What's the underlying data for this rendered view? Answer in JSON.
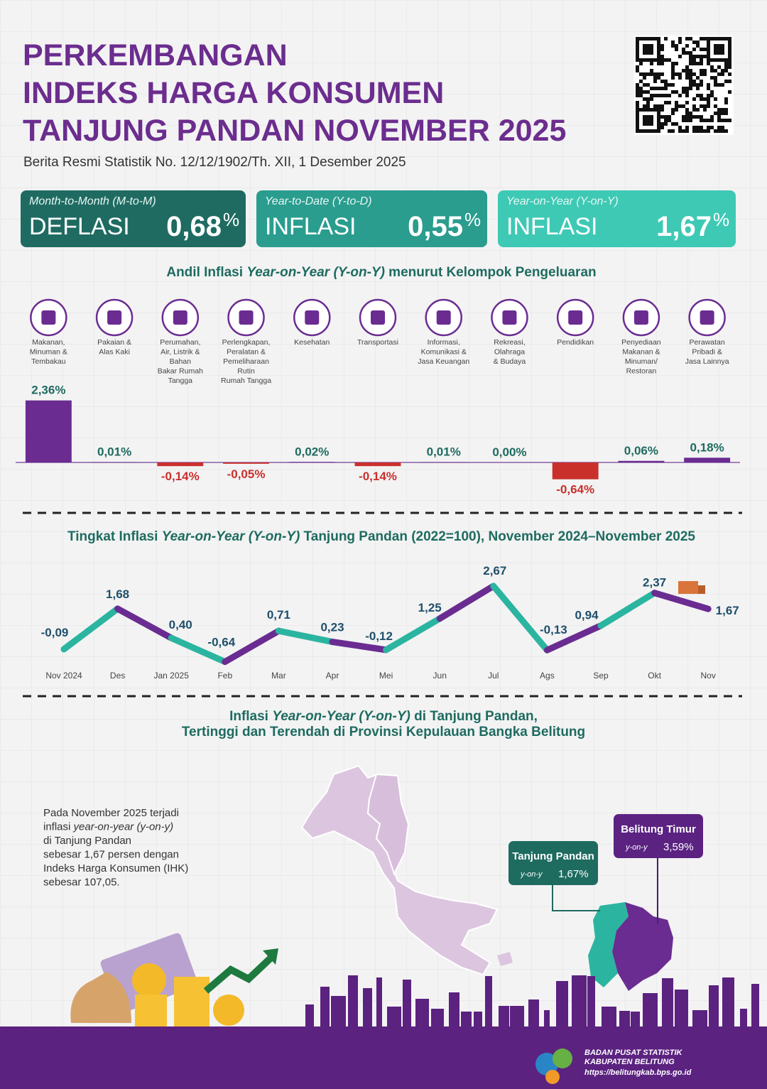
{
  "header": {
    "title": [
      "PERKEMBANGAN",
      "INDEKS HARGA KONSUMEN",
      "TANJUNG PANDAN NOVEMBER 2025"
    ],
    "subtitle": "Berita Resmi Statistik No. 12/12/1902/Th. XII, 1 Desember 2025"
  },
  "summary": [
    {
      "period": "Month-to-Month (M-to-M)",
      "status": "DEFLASI",
      "value": "0,68",
      "unit": "%"
    },
    {
      "period": "Year-to-Date (Y-to-D)",
      "status": "INFLASI",
      "value": "0,55",
      "unit": "%"
    },
    {
      "period": "Year-on-Year (Y-on-Y)",
      "status": "INFLASI",
      "value": "1,67",
      "unit": "%"
    }
  ],
  "chart_data": [
    {
      "type": "bar",
      "title": [
        "Andil Inflasi ",
        "Year-on-Year (Y-on-Y)",
        " menurut Kelompok Pengeluaran"
      ],
      "categories": [
        "Makanan,\nMinuman &\nTembakau",
        "Pakaian &\nAlas Kaki",
        "Perumahan,\nAir, Listrik &\nBahan\nBakar Rumah\nTangga",
        "Perlengkapan,\nPeralatan &\nPemeliharaan\nRutin\nRumah Tangga",
        "Kesehatan",
        "Transportasi",
        "Informasi,\nKomunikasi &\nJasa Keuangan",
        "Rekreasi,\nOlahraga\n& Budaya",
        "Pendidikan",
        "Penyediaan\nMakanan &\nMinuman/\nRestoran",
        "Perawatan\nPribadi &\nJasa Lainnya"
      ],
      "values": [
        2.36,
        0.01,
        -0.14,
        -0.05,
        0.02,
        -0.14,
        0.01,
        0.0,
        -0.64,
        0.06,
        0.18
      ],
      "value_labels": [
        "2,36%",
        "0,01%",
        "-0,14%",
        "-0,05%",
        "0,02%",
        "-0,14%",
        "0,01%",
        "0,00%",
        "-0,64%",
        "0,06%",
        "0,18%"
      ],
      "color": "#6a2c91",
      "negative_color": "#c9302c"
    },
    {
      "type": "line",
      "title": [
        "Tingkat Inflasi ",
        "Year-on-Year (Y-on-Y)",
        " Tanjung Pandan (2022=100), November 2024–November 2025"
      ],
      "categories": [
        "Nov 2024",
        "Des",
        "Jan 2025",
        "Feb",
        "Mar",
        "Apr",
        "Mei",
        "Jun",
        "Jul",
        "Ags",
        "Sep",
        "Okt",
        "Nov"
      ],
      "values": [
        -0.09,
        1.68,
        0.4,
        -0.64,
        0.71,
        0.23,
        -0.12,
        1.25,
        2.67,
        -0.13,
        0.94,
        2.37,
        1.67
      ],
      "value_labels": [
        "-0,09",
        "1,68",
        "0,40",
        "-0,64",
        "0,71",
        "0,23",
        "-0,12",
        "1,25",
        "2,67",
        "-0,13",
        "0,94",
        "2,37",
        "1,67"
      ],
      "colors": [
        "#2bb5a0",
        "#6a2c91"
      ]
    }
  ],
  "map": {
    "title": [
      "Inflasi ",
      "Year-on-Year (Y-on-Y)",
      " di Tanjung Pandan,"
    ],
    "title_line2": "Tertinggi dan Terendah di Provinsi Kepulauan Bangka Belitung",
    "callouts": [
      {
        "name": "Tanjung Pandan",
        "measure": "y-on-y",
        "value": "1,67%"
      },
      {
        "name": "Belitung Timur",
        "measure": "y-on-y",
        "value": "3,59%"
      }
    ]
  },
  "paragraph": [
    [
      "Pada November 2025 terjadi"
    ],
    [
      "inflasi ",
      "year-on-year (y-on-y)"
    ],
    [
      "di Tanjung Pandan"
    ],
    [
      "sebesar 1,67 persen dengan"
    ],
    [
      "Indeks Harga Konsumen (IHK)"
    ],
    [
      "sebesar 107,05."
    ]
  ],
  "footer": {
    "org": "BADAN PUSAT STATISTIK",
    "region": "KABUPATEN BELITUNG",
    "url": "https://belitungkab.bps.go.id"
  }
}
